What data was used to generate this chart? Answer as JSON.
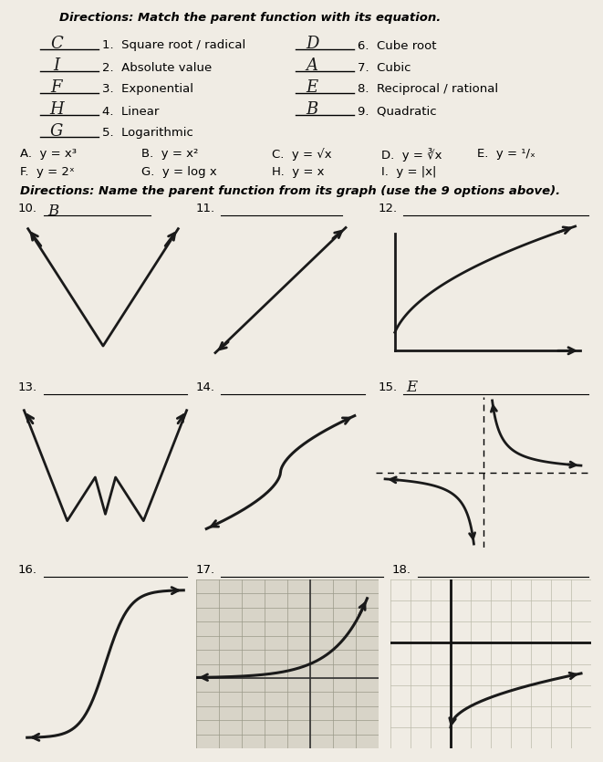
{
  "bg_color": "#f0ece4",
  "title1": "Directions: Match the parent function with its equation.",
  "matching_left": [
    {
      "num": "1.  Square root / radical",
      "answer": "C"
    },
    {
      "num": "2.  Absolute value",
      "answer": "I"
    },
    {
      "num": "3.  Exponential",
      "answer": "F"
    },
    {
      "num": "4.  Linear",
      "answer": "H"
    },
    {
      "num": "5.  Logarithmic",
      "answer": "G"
    }
  ],
  "matching_right": [
    {
      "num": "6.  Cube root",
      "answer": "D"
    },
    {
      "num": "7.  Cubic",
      "answer": "A"
    },
    {
      "num": "8.  Reciprocal / rational",
      "answer": "E"
    },
    {
      "num": "9.  Quadratic",
      "answer": "B"
    }
  ],
  "title2": "Directions: Name the parent function from its graph (use the 9 options above).",
  "ans10": "B",
  "ans15": "E"
}
